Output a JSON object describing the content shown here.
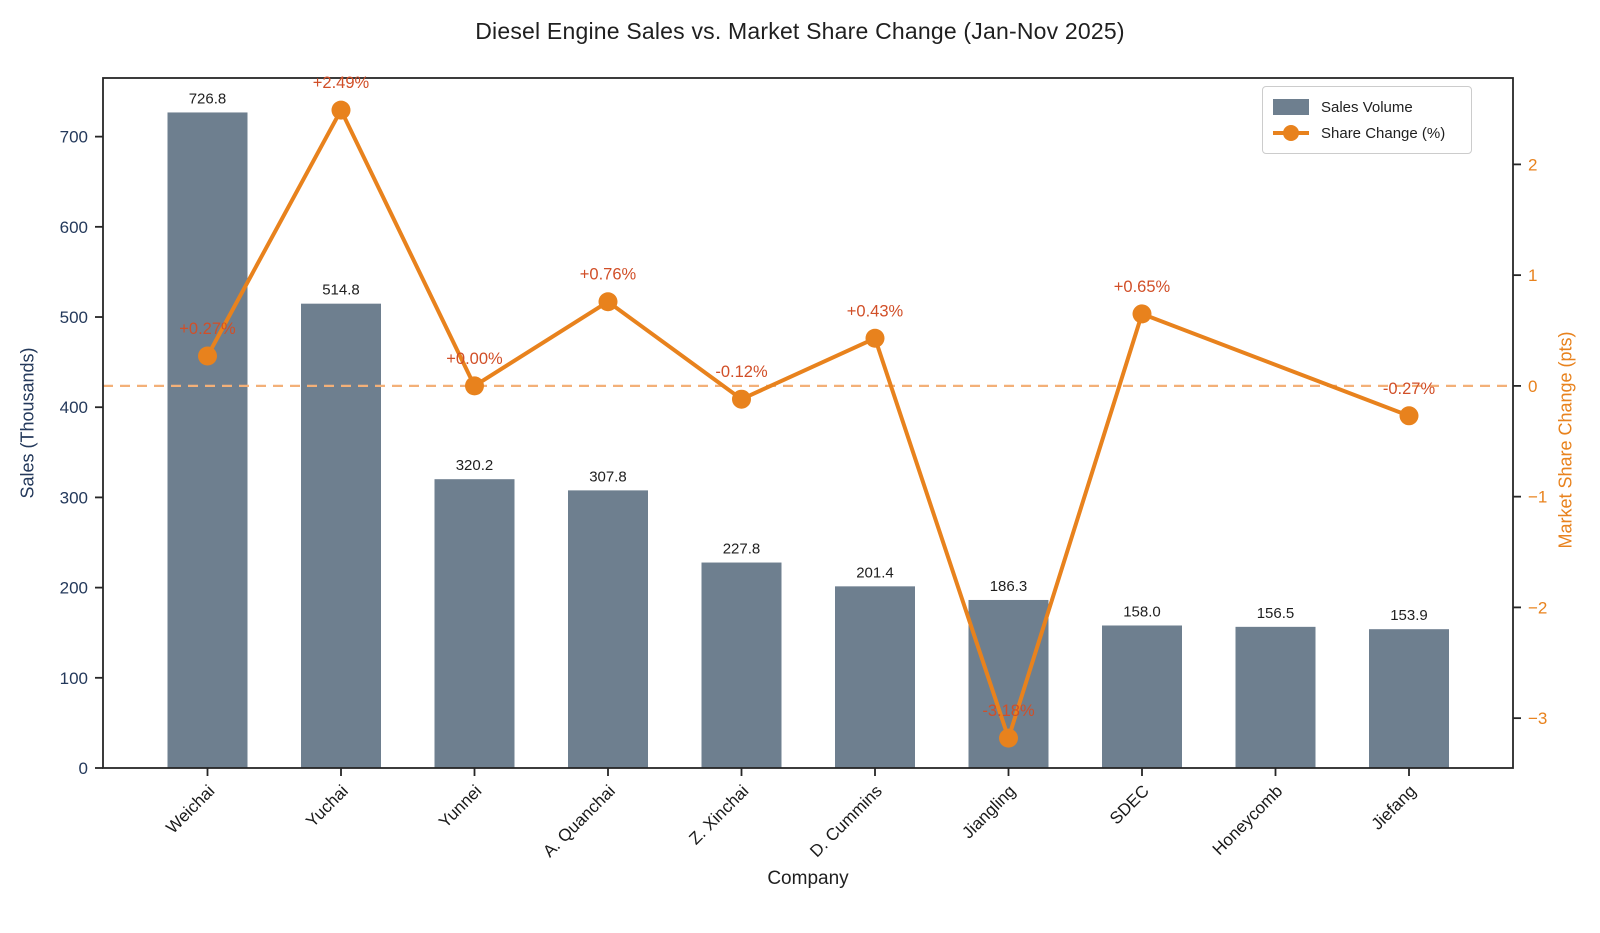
{
  "title": "Diesel Engine Sales vs. Market Share Change (Jan-Nov 2025)",
  "legend": {
    "sales_label": "Sales Volume",
    "share_label": "Share Change (%)"
  },
  "axes": {
    "x_label": "Company",
    "y_left_label": "Sales (Thousands)",
    "y_right_label": "Market Share Change (pts)",
    "y_left_ticks": {
      "values": [
        0,
        100,
        200,
        300,
        400,
        500,
        600,
        700
      ],
      "labels": [
        "0",
        "100",
        "200",
        "300",
        "400",
        "500",
        "600",
        "700"
      ]
    },
    "y_right_ticks": {
      "values": [
        2,
        1,
        0,
        -1,
        -2,
        -3
      ],
      "labels": [
        "2",
        "1",
        "0",
        "−1",
        "−2",
        "−3"
      ]
    }
  },
  "colors": {
    "bar": "#6e7f8f",
    "line": "#e8821d",
    "marker": "#e8821d",
    "annotation": "#d14f28",
    "zero_line": "#f3b078",
    "left_axis_text": "#24395b",
    "right_axis_text": "#e8821d",
    "spine": "#262626",
    "dark_text": "#1f1f1f"
  },
  "chart_data": {
    "type": "bar+line",
    "title": "Diesel Engine Sales vs. Market Share Change (Jan-Nov 2025)",
    "xlabel": "Company",
    "ylabel_left": "Sales (Thousands)",
    "ylabel_right": "Market Share Change (pts)",
    "categories": [
      "Weichai",
      "Yuchai",
      "Yunnei",
      "A. Quanchai",
      "Z. Xinchai",
      "D. Cummins",
      "Jiangling",
      "SDEC",
      "Honeycomb",
      "Jiefang"
    ],
    "series": [
      {
        "name": "Sales Volume",
        "type": "bar",
        "axis": "left",
        "values": [
          726.8,
          514.8,
          320.2,
          307.8,
          227.8,
          201.4,
          186.3,
          158.0,
          156.5,
          153.9
        ],
        "labels": [
          "726.8",
          "514.8",
          "320.2",
          "307.8",
          "227.8",
          "201.4",
          "186.3",
          "158.0",
          "156.5",
          "153.9"
        ]
      },
      {
        "name": "Share Change (%)",
        "type": "line",
        "axis": "right",
        "values": [
          0.27,
          2.49,
          0.0,
          0.76,
          -0.12,
          0.43,
          -3.18,
          0.65,
          null,
          -0.27
        ],
        "labels": [
          "+0.27%",
          "+2.49%",
          "+0.00%",
          "+0.76%",
          "-0.12%",
          "+0.43%",
          "-3.18%",
          "+0.65%",
          null,
          "-0.27%"
        ]
      }
    ],
    "ylim_left": [
      0,
      765
    ],
    "ylim_right": [
      -3.45,
      2.78
    ],
    "zero_reference_line": true,
    "grid": false,
    "legend_position": "upper right"
  }
}
